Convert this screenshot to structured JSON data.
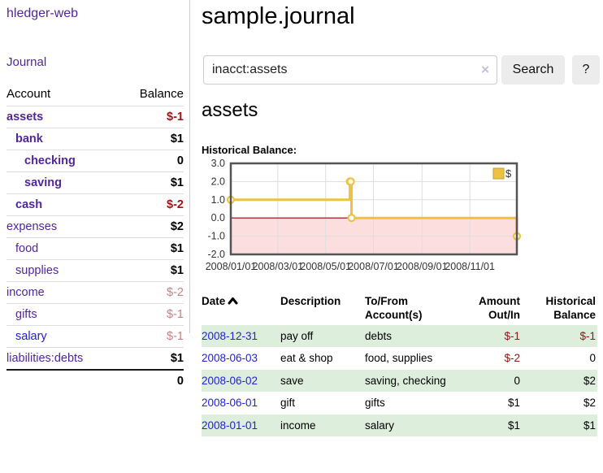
{
  "app": {
    "title": "hledger-web"
  },
  "sidebar": {
    "journal_link": "Journal",
    "accounts_header": {
      "account": "Account",
      "balance": "Balance"
    },
    "accounts": [
      {
        "name": "assets",
        "balance": "$-1",
        "level": 1,
        "bold": true,
        "neg": "strong"
      },
      {
        "name": "bank",
        "balance": "$1",
        "level": 2,
        "bold": true
      },
      {
        "name": "checking",
        "balance": "0",
        "level": 3,
        "bold": true
      },
      {
        "name": "saving",
        "balance": "$1",
        "level": 3,
        "bold": true
      },
      {
        "name": "cash",
        "balance": "$-2",
        "level": 2,
        "bold": true,
        "neg": "strong"
      },
      {
        "name": "expenses",
        "balance": "$2",
        "level": 1
      },
      {
        "name": "food",
        "balance": "$1",
        "level": 2
      },
      {
        "name": "supplies",
        "balance": "$1",
        "level": 2
      },
      {
        "name": "income",
        "balance": "$-2",
        "level": 1,
        "neg": "muted"
      },
      {
        "name": "gifts",
        "balance": "$-1",
        "level": 2,
        "neg": "muted"
      },
      {
        "name": "salary",
        "balance": "$-1",
        "level": 2,
        "neg": "muted",
        "blue": true
      },
      {
        "name": "liabilities:debts",
        "balance": "$1",
        "level": 1
      }
    ],
    "total": "0"
  },
  "main": {
    "title": "sample.journal",
    "search": {
      "query": "inacct:assets",
      "clear_label": "×",
      "button": "Search",
      "help_button": "?"
    },
    "account_heading": "assets",
    "chart_label": "Historical Balance:"
  },
  "chart_data": {
    "type": "line",
    "title": "Historical Balance:",
    "steps": true,
    "series": [
      {
        "name": "$",
        "color": "#edc240",
        "points": [
          [
            "2008-01-01",
            1
          ],
          [
            "2008-06-01",
            2
          ],
          [
            "2008-06-02",
            2
          ],
          [
            "2008-06-03",
            0
          ],
          [
            "2008-12-31",
            -1
          ]
        ]
      }
    ],
    "xlim": [
      "2008-01-01",
      "2008-12-31"
    ],
    "ylim": [
      -2,
      3
    ],
    "yticks": [
      3.0,
      2.0,
      1.0,
      0.0,
      -1.0,
      -2.0
    ],
    "xticks": [
      "2008/01/01",
      "2008/03/01",
      "2008/05/01",
      "2008/07/01",
      "2008/09/01",
      "2008/11/01"
    ],
    "grid": true,
    "legend_position": "top-right",
    "negative_fill": "#fcdede",
    "zero_line_color": "#990000",
    "border_color": "#545454"
  },
  "register": {
    "headers": {
      "date": "Date",
      "description": "Description",
      "accounts_l1": "To/From",
      "accounts_l2": "Account(s)",
      "amount_l1": "Amount",
      "amount_l2": "Out/In",
      "balance_l1": "Historical",
      "balance_l2": "Balance"
    },
    "rows": [
      {
        "date": "2008-12-31",
        "description": "pay off",
        "accounts": "debts",
        "amount": "$-1",
        "balance": "$-1"
      },
      {
        "date": "2008-06-03",
        "description": "eat & shop",
        "accounts": "food, supplies",
        "amount": "$-2",
        "balance": "0"
      },
      {
        "date": "2008-06-02",
        "description": "save",
        "accounts": "saving, checking",
        "amount": "0",
        "balance": "$2"
      },
      {
        "date": "2008-06-01",
        "description": "gift",
        "accounts": "gifts",
        "amount": "$1",
        "balance": "$2"
      },
      {
        "date": "2008-01-01",
        "description": "income",
        "accounts": "salary",
        "amount": "$1",
        "balance": "$1"
      }
    ]
  },
  "colors": {
    "accent_purple": "#50279b",
    "link_blue": "#2121d6",
    "negative_strong": "#a01414",
    "negative_muted": "#c28383",
    "row_green": "#ddeedd",
    "chart_gold": "#edc240"
  }
}
